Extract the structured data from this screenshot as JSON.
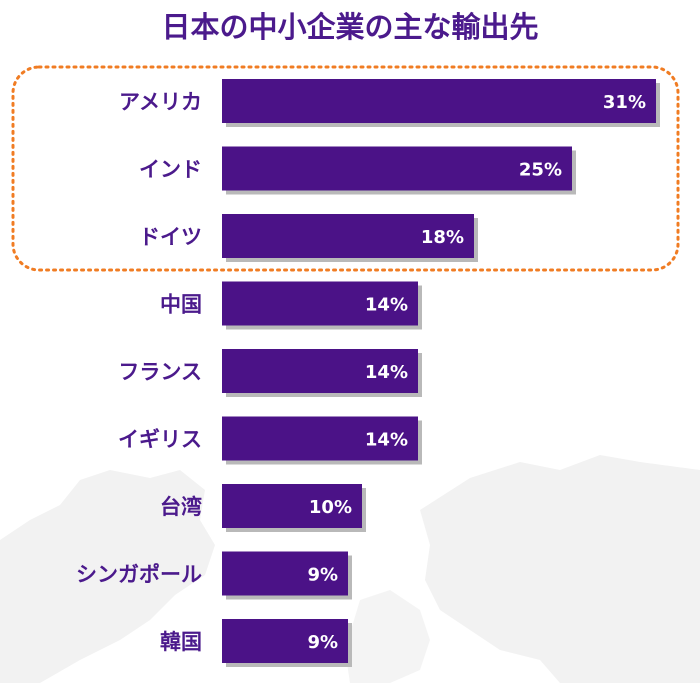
{
  "chart_data": {
    "type": "bar",
    "orientation": "horizontal",
    "title": "日本の中小企業の主な輸出先",
    "categories": [
      "アメリカ",
      "インド",
      "ドイツ",
      "中国",
      "フランス",
      "イギリス",
      "台湾",
      "シンガポール",
      "韓国"
    ],
    "values": [
      31,
      25,
      18,
      14,
      14,
      14,
      10,
      9,
      9
    ],
    "value_labels": [
      "31%",
      "25%",
      "18%",
      "14%",
      "14%",
      "14%",
      "10%",
      "9%",
      "9%"
    ],
    "xlim": [
      0,
      31
    ],
    "grid": false,
    "highlighted_categories": [
      "アメリカ",
      "インド",
      "ドイツ"
    ]
  },
  "colors": {
    "bar": "#4b1287",
    "bar_shadow": "#b9b9b9",
    "title": "#4b1a8c",
    "category_text": "#4b1a8c",
    "value_text": "#ffffff",
    "highlight_border": "#f07c23",
    "map_background": "#f2f2f2"
  }
}
